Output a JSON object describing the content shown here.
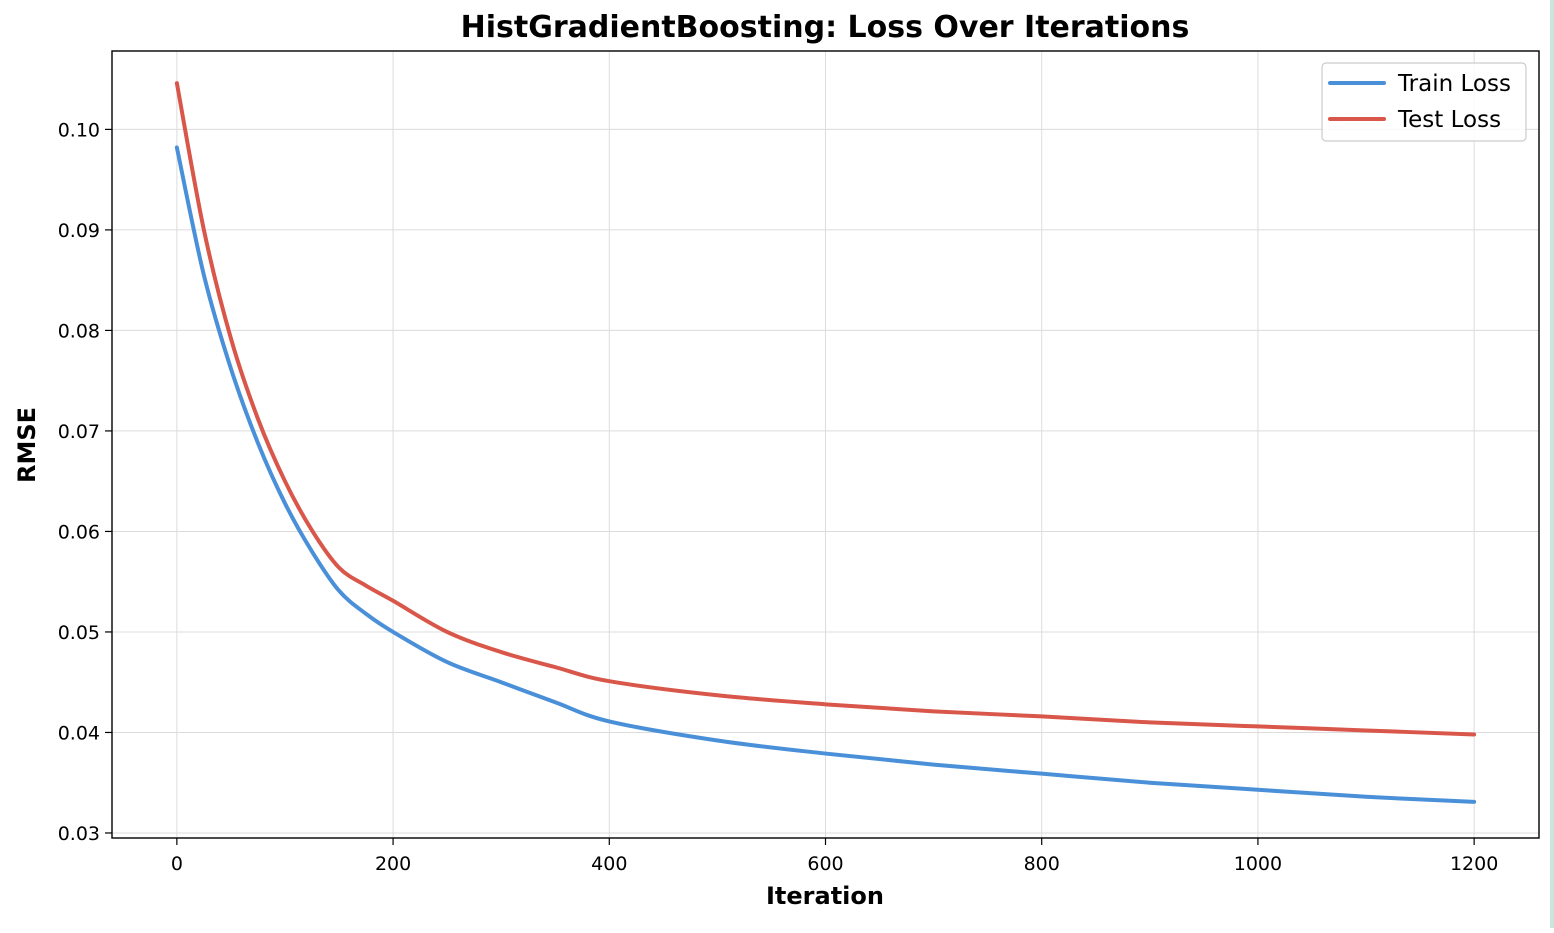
{
  "chart_data": {
    "type": "line",
    "title": "HistGradientBoosting: Loss Over Iterations",
    "xlabel": "Iteration",
    "ylabel": "RMSE",
    "xlim": [
      -60,
      1260
    ],
    "ylim": [
      0.0295,
      0.1078
    ],
    "xticks": [
      0,
      200,
      400,
      600,
      800,
      1000,
      1200
    ],
    "xtick_labels": [
      "0",
      "200",
      "400",
      "600",
      "800",
      "1000",
      "1200"
    ],
    "yticks": [
      0.03,
      0.04,
      0.05,
      0.06,
      0.07,
      0.08,
      0.09,
      0.1
    ],
    "ytick_labels": [
      "0.03",
      "0.04",
      "0.05",
      "0.06",
      "0.07",
      "0.08",
      "0.09",
      "0.10"
    ],
    "grid": true,
    "legend_position": "top-right",
    "x": [
      0,
      25,
      50,
      75,
      100,
      125,
      150,
      175,
      200,
      250,
      300,
      350,
      400,
      500,
      600,
      700,
      800,
      900,
      1000,
      1100,
      1200
    ],
    "series": [
      {
        "name": "Train Loss",
        "color": "#4a90d9",
        "values": [
          0.0982,
          0.0855,
          0.0762,
          0.0688,
          0.0628,
          0.058,
          0.0541,
          0.0518,
          0.05,
          0.047,
          0.045,
          0.043,
          0.0411,
          0.0392,
          0.0379,
          0.0368,
          0.0359,
          0.035,
          0.0343,
          0.0336,
          0.0331
        ]
      },
      {
        "name": "Test Loss",
        "color": "#d9574a",
        "values": [
          0.1046,
          0.09,
          0.0792,
          0.0712,
          0.065,
          0.0601,
          0.0564,
          0.0546,
          0.0531,
          0.05,
          0.048,
          0.0465,
          0.0451,
          0.0437,
          0.0428,
          0.0421,
          0.0416,
          0.041,
          0.0406,
          0.0402,
          0.0398
        ]
      }
    ]
  }
}
